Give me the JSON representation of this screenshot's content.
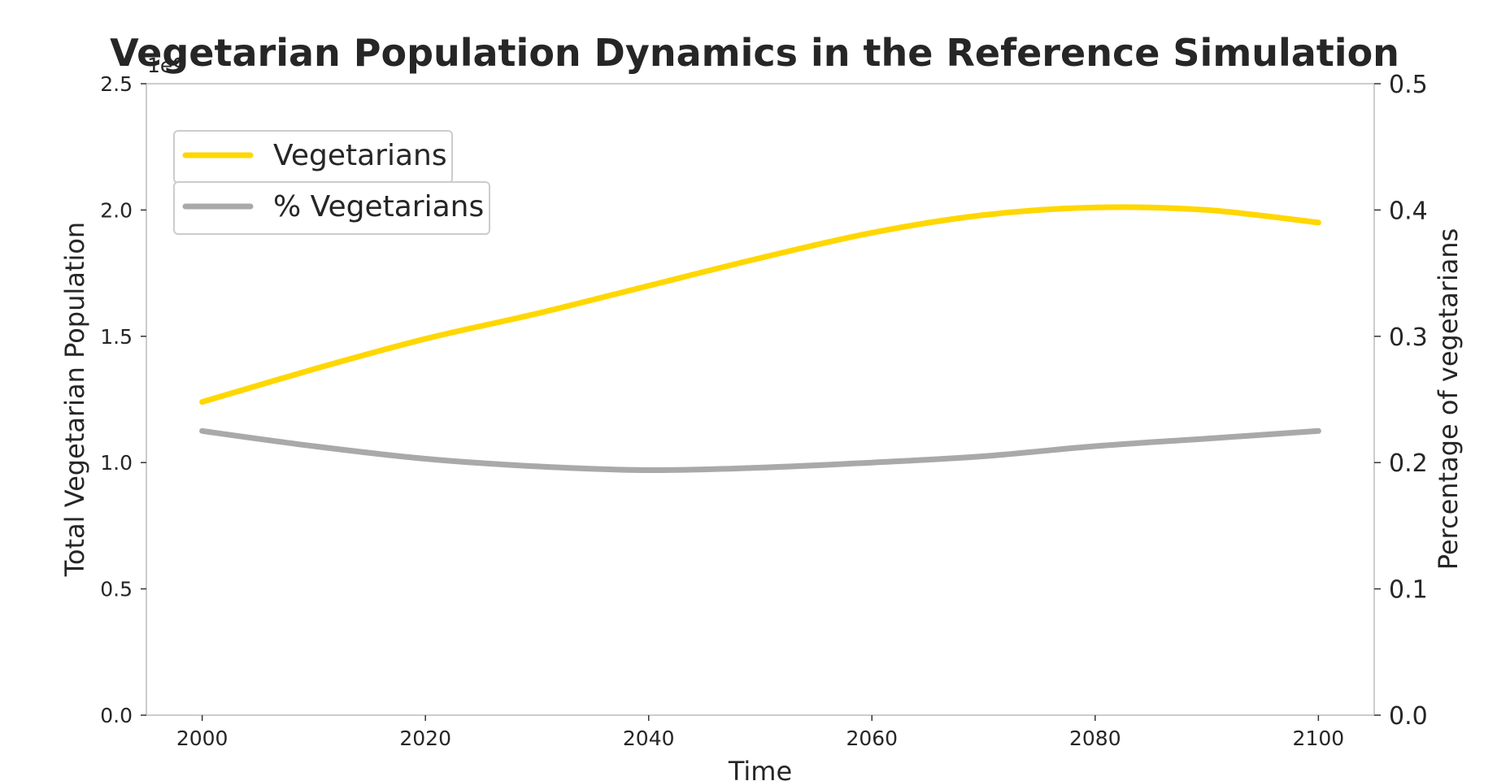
{
  "chart_data": {
    "type": "line",
    "title": "Vegetarian Population Dynamics in the Reference Simulation",
    "xlabel": "Time",
    "ylabel_left": "Total Vegetarian Population",
    "ylabel_right": "Percentage of vegetarians",
    "left_axis_offset_label": "1e9",
    "xlim": [
      1995,
      2105
    ],
    "ylim_left": [
      0,
      2.5
    ],
    "ylim_right": [
      0,
      0.5
    ],
    "x_ticks": [
      "2000",
      "2020",
      "2040",
      "2060",
      "2080",
      "2100"
    ],
    "y_left_ticks": [
      "0.0",
      "0.5",
      "1.0",
      "1.5",
      "2.0",
      "2.5"
    ],
    "y_right_ticks": [
      "0.0",
      "0.1",
      "0.2",
      "0.3",
      "0.4",
      "0.5"
    ],
    "grid": false,
    "legend_position": "top-left",
    "series": [
      {
        "name": "Vegetarians",
        "axis": "left",
        "color": "#FFD700",
        "x": [
          2000,
          2010,
          2020,
          2030,
          2040,
          2050,
          2060,
          2070,
          2080,
          2090,
          2100
        ],
        "values": [
          1.24,
          1.37,
          1.49,
          1.59,
          1.7,
          1.81,
          1.91,
          1.98,
          2.01,
          2.0,
          1.95
        ]
      },
      {
        "name": "% Vegetarians",
        "axis": "right",
        "color": "#A9A9A9",
        "x": [
          2000,
          2010,
          2020,
          2030,
          2040,
          2050,
          2060,
          2070,
          2080,
          2090,
          2100
        ],
        "values": [
          0.225,
          0.213,
          0.203,
          0.197,
          0.194,
          0.196,
          0.2,
          0.205,
          0.213,
          0.219,
          0.225
        ]
      }
    ]
  }
}
